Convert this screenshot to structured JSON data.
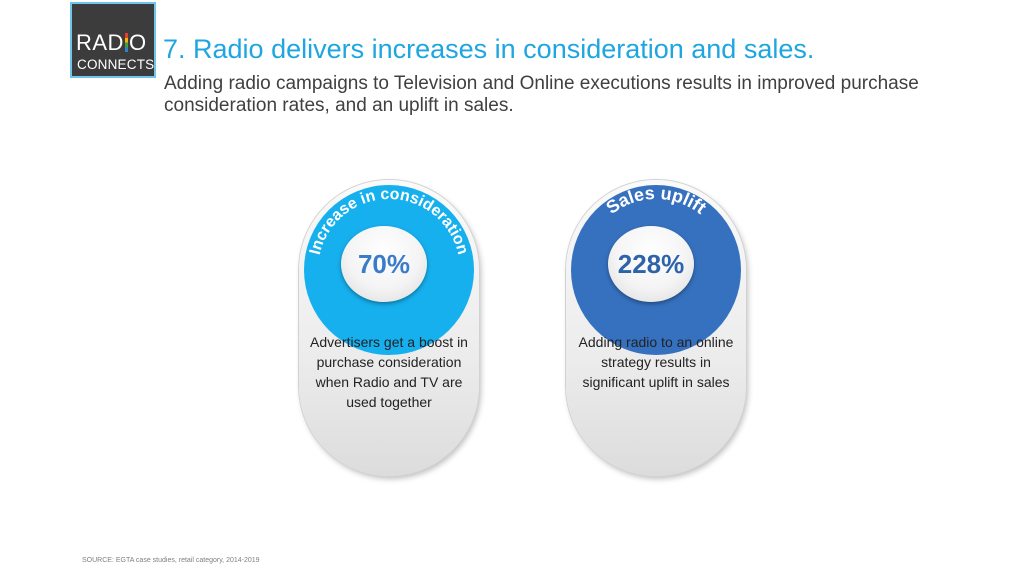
{
  "logo": {
    "line1_a": "RAD",
    "line1_b": "O",
    "line2": "CONNECTS"
  },
  "title": "7. Radio delivers increases in consideration and sales.",
  "subtitle": "Adding radio campaigns to Television and Online executions results in improved purchase consideration rates, and an uplift in sales.",
  "cards": [
    {
      "arc_label": "Increase in consideration",
      "value": "70%",
      "description": "Advertisers get a boost in purchase consideration when Radio and TV are used together",
      "color": "#16b0ef"
    },
    {
      "arc_label": "Sales uplift",
      "value": "228%",
      "description": "Adding radio to an online strategy results in significant uplift in sales",
      "color": "#3671bf"
    }
  ],
  "source": "SOURCE: EGTA case studies, retail category, 2014-2019"
}
